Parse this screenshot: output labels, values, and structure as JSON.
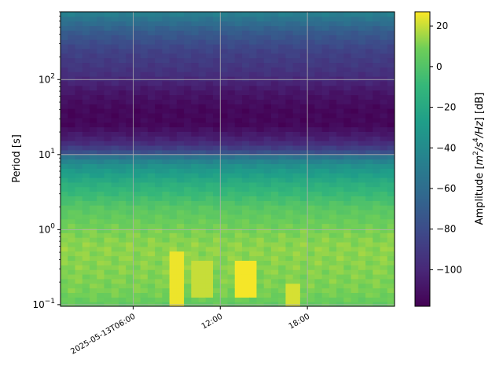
{
  "chart_data": {
    "type": "heatmap",
    "title": "",
    "xlabel": "",
    "ylabel": "Period [s]",
    "colorbar_label": "Amplitude [$m^2/s^4/Hz$] [dB]",
    "colorbar_label_parts": {
      "prefix": "Amplitude [",
      "unit_m": "m",
      "exp_2": "2",
      "slash_s": "/s",
      "exp_4": "4",
      "slash_hz": "/Hz",
      "suffix": "] [dB]"
    },
    "colormap": "viridis",
    "y_scale": "log",
    "ylim": [
      0.095,
      800
    ],
    "xlim": [
      "2025-05-13T01:00",
      "2025-05-13T24:00"
    ],
    "x_ticks": [
      {
        "value": "2025-05-13T06:00",
        "label": "2025-05-13T06:00"
      },
      {
        "value": "2025-05-13T12:00",
        "label": "12:00"
      },
      {
        "value": "2025-05-13T18:00",
        "label": "18:00"
      }
    ],
    "y_ticks": [
      {
        "value": 0.1,
        "base": "10",
        "exp": "−1"
      },
      {
        "value": 1,
        "base": "10",
        "exp": "0"
      },
      {
        "value": 10,
        "base": "10",
        "exp": "1"
      },
      {
        "value": 100,
        "base": "10",
        "exp": "2"
      }
    ],
    "colorbar_ticks": [
      {
        "value": 20,
        "label": "20"
      },
      {
        "value": 0,
        "label": "0"
      },
      {
        "value": -20,
        "label": "−20"
      },
      {
        "value": -40,
        "label": "−40"
      },
      {
        "value": -60,
        "label": "−60"
      },
      {
        "value": -80,
        "label": "−80"
      },
      {
        "value": -100,
        "label": "−100"
      }
    ],
    "clim": [
      -118,
      27
    ],
    "grid": true,
    "period_profile_db": [
      {
        "period": 0.1,
        "amplitude": 5
      },
      {
        "period": 0.15,
        "amplitude": 10
      },
      {
        "period": 0.3,
        "amplitude": 12
      },
      {
        "period": 0.6,
        "amplitude": 13
      },
      {
        "period": 1.0,
        "amplitude": 10
      },
      {
        "period": 2.0,
        "amplitude": 2
      },
      {
        "period": 4.0,
        "amplitude": -15
      },
      {
        "period": 7.0,
        "amplitude": -35
      },
      {
        "period": 9.0,
        "amplitude": -50
      },
      {
        "period": 11.0,
        "amplitude": -80
      },
      {
        "period": 15.0,
        "amplitude": -100
      },
      {
        "period": 25.0,
        "amplitude": -115
      },
      {
        "period": 40.0,
        "amplitude": -115
      },
      {
        "period": 70.0,
        "amplitude": -108
      },
      {
        "period": 120.0,
        "amplitude": -95
      },
      {
        "period": 250.0,
        "amplitude": -85
      },
      {
        "period": 450.0,
        "amplitude": -70
      },
      {
        "period": 650.0,
        "amplitude": -55
      },
      {
        "period": 800.0,
        "amplitude": -45
      }
    ],
    "high_amplitude_bursts": [
      {
        "start": "2025-05-13T08:30",
        "end": "2025-05-13T09:30",
        "period_min": 0.1,
        "period_max": 0.5,
        "amplitude": 25
      },
      {
        "start": "2025-05-13T10:15",
        "end": "2025-05-13T11:30",
        "period_min": 0.12,
        "period_max": 0.4,
        "amplitude": 20
      },
      {
        "start": "2025-05-13T13:00",
        "end": "2025-05-13T14:30",
        "period_min": 0.12,
        "period_max": 0.4,
        "amplitude": 26
      },
      {
        "start": "2025-05-13T16:30",
        "end": "2025-05-13T17:30",
        "period_min": 0.1,
        "period_max": 0.2,
        "amplitude": 22
      }
    ]
  }
}
